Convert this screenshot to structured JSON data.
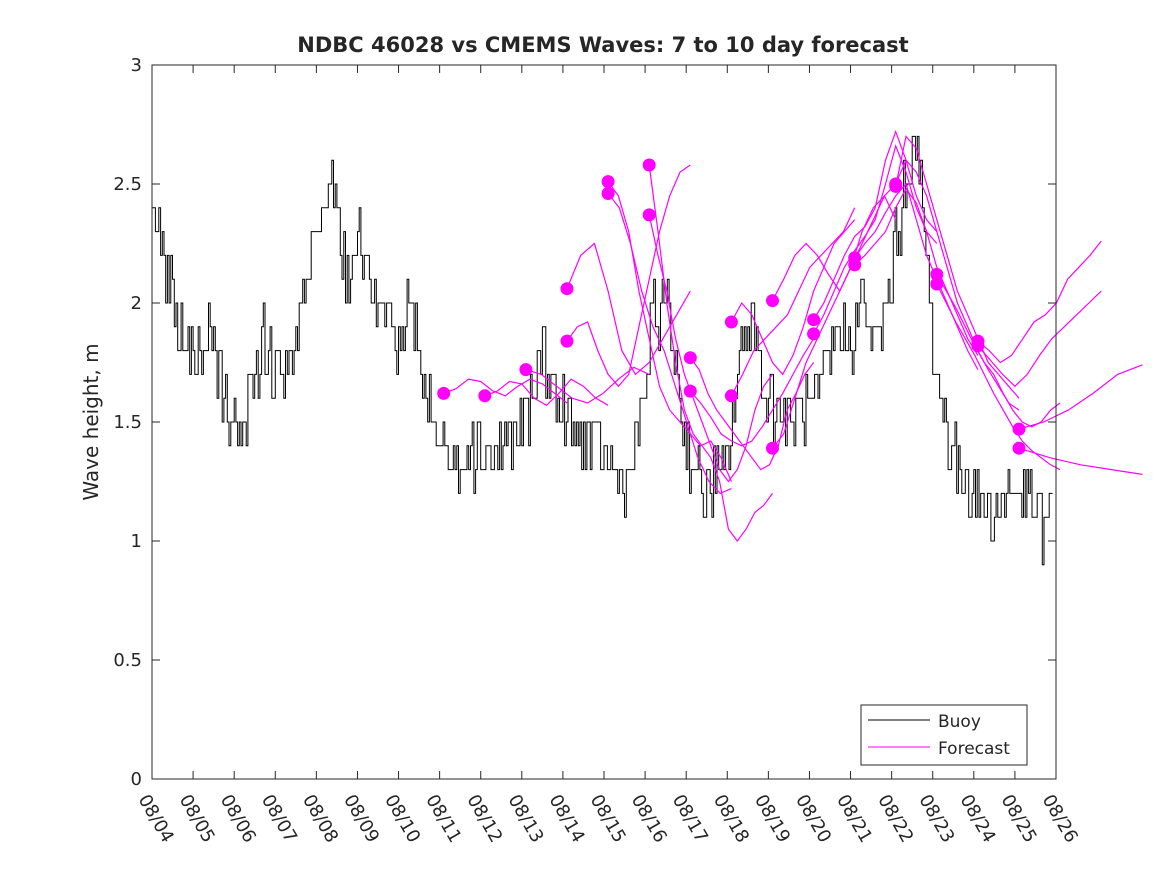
{
  "chart_data": {
    "type": "line",
    "title": "NDBC 46028 vs CMEMS Waves: 7 to 10 day forecast",
    "xlabel": "",
    "ylabel": "Wave height, m",
    "xlim": [
      0,
      22
    ],
    "ylim": [
      0,
      3
    ],
    "yticks": [
      0,
      0.5,
      1,
      1.5,
      2,
      2.5,
      3
    ],
    "ytick_labels": [
      "0",
      "0.5",
      "1",
      "1.5",
      "2",
      "2.5",
      "3"
    ],
    "xtick_labels": [
      "08/04",
      "08/05",
      "08/06",
      "08/07",
      "08/08",
      "08/09",
      "08/10",
      "08/11",
      "08/12",
      "08/13",
      "08/14",
      "08/15",
      "08/16",
      "08/17",
      "08/18",
      "08/19",
      "08/20",
      "08/21",
      "08/22",
      "08/23",
      "08/24",
      "08/25",
      "08/26"
    ],
    "legend": {
      "location": "bottom-right",
      "entries": [
        "Buoy",
        "Forecast"
      ]
    },
    "colors": {
      "buoy": "#000000",
      "forecast": "#ff00ff",
      "axes": "#262626"
    },
    "buoy_anchors": [
      [
        0,
        2.5
      ],
      [
        0.3,
        2.2
      ],
      [
        0.6,
        1.9
      ],
      [
        0.9,
        1.75
      ],
      [
        1.2,
        1.85
      ],
      [
        1.5,
        1.8
      ],
      [
        1.8,
        1.55
      ],
      [
        2.1,
        1.45
      ],
      [
        2.4,
        1.6
      ],
      [
        2.7,
        1.85
      ],
      [
        3.0,
        1.75
      ],
      [
        3.3,
        1.65
      ],
      [
        3.6,
        1.9
      ],
      [
        3.9,
        2.15
      ],
      [
        4.2,
        2.45
      ],
      [
        4.4,
        2.55
      ],
      [
        4.7,
        2.1
      ],
      [
        5.0,
        2.25
      ],
      [
        5.3,
        2.0
      ],
      [
        5.7,
        1.95
      ],
      [
        5.9,
        1.85
      ],
      [
        6.2,
        1.95
      ],
      [
        6.5,
        1.85
      ],
      [
        6.8,
        1.5
      ],
      [
        7.1,
        1.4
      ],
      [
        7.4,
        1.3
      ],
      [
        7.7,
        1.38
      ],
      [
        8.0,
        1.4
      ],
      [
        8.3,
        1.35
      ],
      [
        8.6,
        1.4
      ],
      [
        8.9,
        1.45
      ],
      [
        9.2,
        1.55
      ],
      [
        9.5,
        1.8
      ],
      [
        9.8,
        1.6
      ],
      [
        10.1,
        1.5
      ],
      [
        10.4,
        1.45
      ],
      [
        10.7,
        1.4
      ],
      [
        11.0,
        1.35
      ],
      [
        11.3,
        1.3
      ],
      [
        11.6,
        1.25
      ],
      [
        11.9,
        1.5
      ],
      [
        12.2,
        1.95
      ],
      [
        12.5,
        2.0
      ],
      [
        12.7,
        1.8
      ],
      [
        12.9,
        1.5
      ],
      [
        13.2,
        1.3
      ],
      [
        13.4,
        1.2
      ],
      [
        13.7,
        1.25
      ],
      [
        14.0,
        1.3
      ],
      [
        14.3,
        1.8
      ],
      [
        14.6,
        1.95
      ],
      [
        14.9,
        1.65
      ],
      [
        15.2,
        1.55
      ],
      [
        15.5,
        1.5
      ],
      [
        15.8,
        1.55
      ],
      [
        16.1,
        1.55
      ],
      [
        16.4,
        1.7
      ],
      [
        16.7,
        1.9
      ],
      [
        17.0,
        1.85
      ],
      [
        17.3,
        2.0
      ],
      [
        17.6,
        1.8
      ],
      [
        17.9,
        2.0
      ],
      [
        18.2,
        2.35
      ],
      [
        18.4,
        2.6
      ],
      [
        18.6,
        2.65
      ],
      [
        18.8,
        2.3
      ],
      [
        19.0,
        1.8
      ],
      [
        19.3,
        1.5
      ],
      [
        19.6,
        1.3
      ],
      [
        19.9,
        1.25
      ],
      [
        20.2,
        1.15
      ],
      [
        20.5,
        1.1
      ],
      [
        20.8,
        1.2
      ],
      [
        21.1,
        1.25
      ],
      [
        21.4,
        1.15
      ],
      [
        21.7,
        1.05
      ],
      [
        22.0,
        1.15
      ]
    ],
    "forecast_series": [
      {
        "start": 7.1,
        "values": [
          1.62,
          1.64,
          1.68,
          1.67,
          1.63,
          1.61,
          1.65,
          1.68,
          1.66,
          1.62,
          1.58
        ]
      },
      {
        "start": 8.1,
        "values": [
          1.61,
          1.63,
          1.67,
          1.66,
          1.6,
          1.57,
          1.62,
          1.68,
          1.65,
          1.6,
          1.57
        ]
      },
      {
        "start": 9.1,
        "values": [
          1.72,
          1.7,
          1.65,
          1.6,
          1.58,
          1.62,
          1.68,
          1.73,
          1.7
        ]
      },
      {
        "start": 10.1,
        "values": [
          2.06,
          2.2,
          2.25,
          2.05,
          1.8,
          1.7,
          1.75,
          1.85,
          1.95,
          2.05
        ]
      },
      {
        "start": 10.1,
        "values": [
          1.84,
          1.9,
          1.92,
          1.8,
          1.7,
          1.65,
          1.7,
          1.9,
          2.1,
          2.3,
          2.45,
          2.55,
          2.58
        ]
      },
      {
        "start": 11.1,
        "values": [
          2.51,
          2.45,
          2.3,
          2.05,
          1.85,
          1.65,
          1.55,
          1.5,
          1.45,
          1.4,
          1.42,
          1.35,
          1.25
        ]
      },
      {
        "start": 11.1,
        "values": [
          2.46,
          2.4,
          2.25,
          2.05,
          1.9,
          1.8,
          1.65,
          1.5,
          1.35,
          1.25,
          1.2,
          1.22
        ]
      },
      {
        "start": 12.1,
        "values": [
          2.58,
          2.3,
          2.0,
          1.75,
          1.55,
          1.45,
          1.4,
          1.35,
          1.25,
          1.05,
          1.0,
          1.05,
          1.12,
          1.15,
          1.2
        ]
      },
      {
        "start": 12.1,
        "values": [
          2.37,
          2.2,
          2.05,
          1.85,
          1.7,
          1.6,
          1.5,
          1.4,
          1.3,
          1.25,
          1.3,
          1.4,
          1.55,
          1.65,
          1.7
        ]
      },
      {
        "start": 13.1,
        "values": [
          1.77,
          1.72,
          1.62,
          1.55,
          1.5,
          1.45,
          1.4,
          1.35,
          1.3,
          1.32,
          1.4,
          1.55,
          1.62,
          1.7,
          1.75
        ]
      },
      {
        "start": 13.1,
        "values": [
          1.63,
          1.58,
          1.52,
          1.45,
          1.42,
          1.4,
          1.42,
          1.48,
          1.55,
          1.62,
          1.7,
          1.78,
          1.85
        ]
      },
      {
        "start": 14.1,
        "values": [
          1.92,
          2.0,
          1.95,
          1.85,
          1.75,
          1.7,
          1.78,
          1.9,
          2.05,
          2.15,
          2.25,
          2.3,
          2.35
        ]
      },
      {
        "start": 14.1,
        "values": [
          1.61,
          1.7,
          1.8,
          1.85,
          1.9,
          1.95,
          2.05,
          2.15,
          2.2,
          2.25,
          2.3,
          2.4
        ]
      },
      {
        "start": 15.1,
        "values": [
          2.01,
          2.1,
          2.2,
          2.25,
          2.2,
          2.12,
          2.05,
          2.15,
          2.3,
          2.4,
          2.45,
          2.5
        ]
      },
      {
        "start": 15.1,
        "values": [
          1.39,
          1.45,
          1.6,
          1.75,
          1.85,
          1.95,
          2.05,
          2.15,
          2.25,
          2.35,
          2.45,
          2.35
        ]
      },
      {
        "start": 16.1,
        "values": [
          1.93,
          2.0,
          2.1,
          2.2,
          2.28,
          2.32,
          2.4,
          2.6,
          2.72,
          2.6,
          2.45,
          2.35,
          2.3
        ]
      },
      {
        "start": 16.1,
        "values": [
          1.87,
          1.95,
          2.05,
          2.15,
          2.22,
          2.28,
          2.35,
          2.5,
          2.66,
          2.55,
          2.4,
          2.3,
          2.25
        ]
      },
      {
        "start": 17.1,
        "values": [
          2.19,
          2.25,
          2.3,
          2.38,
          2.45,
          2.5,
          2.35,
          2.2,
          2.1,
          2.0,
          1.9,
          1.8,
          1.72
        ]
      },
      {
        "start": 17.1,
        "values": [
          2.16,
          2.2,
          2.25,
          2.3,
          2.4,
          2.48,
          2.42,
          2.3,
          2.15,
          2.05,
          1.95,
          1.85,
          1.78
        ]
      },
      {
        "start": 18.1,
        "values": [
          2.49,
          2.7,
          2.65,
          2.5,
          2.35,
          2.2,
          2.05,
          1.95,
          1.85,
          1.75,
          1.7,
          1.65,
          1.6
        ]
      },
      {
        "start": 18.1,
        "values": [
          2.5,
          2.6,
          2.55,
          2.45,
          2.3,
          2.15,
          2.0,
          1.9,
          1.8,
          1.72,
          1.65,
          1.58,
          1.55
        ]
      },
      {
        "start": 19.1,
        "values": [
          2.12,
          2.05,
          1.98,
          1.9,
          1.82,
          1.75,
          1.7,
          1.62,
          1.55,
          1.5,
          1.48,
          1.5,
          1.55,
          1.58
        ]
      },
      {
        "start": 19.1,
        "values": [
          2.08,
          2.0,
          1.92,
          1.85,
          1.78,
          1.7,
          1.62,
          1.55,
          1.48,
          1.42,
          1.38,
          1.35,
          1.32,
          1.3
        ]
      },
      {
        "start": 20.1,
        "values": [
          1.84,
          1.8,
          1.75,
          1.78,
          1.85,
          1.92,
          1.95,
          2.0,
          2.1,
          2.15,
          2.2,
          2.26
        ]
      },
      {
        "start": 20.1,
        "values": [
          1.82,
          1.76,
          1.7,
          1.65,
          1.7,
          1.78,
          1.85,
          1.9,
          1.95,
          2.0,
          2.05
        ]
      },
      {
        "start": 21.1,
        "values": [
          1.47,
          1.5,
          1.55,
          1.62,
          1.7,
          1.74
        ]
      },
      {
        "start": 21.1,
        "values": [
          1.39,
          1.35,
          1.32,
          1.3,
          1.28
        ]
      }
    ],
    "forecast_markers": [
      [
        7.1,
        1.62
      ],
      [
        8.1,
        1.61
      ],
      [
        9.1,
        1.72
      ],
      [
        10.1,
        2.06
      ],
      [
        10.1,
        1.84
      ],
      [
        11.1,
        2.51
      ],
      [
        11.1,
        2.46
      ],
      [
        12.1,
        2.58
      ],
      [
        12.1,
        2.37
      ],
      [
        13.1,
        1.77
      ],
      [
        13.1,
        1.63
      ],
      [
        14.1,
        1.92
      ],
      [
        14.1,
        1.61
      ],
      [
        15.1,
        2.01
      ],
      [
        15.1,
        1.39
      ],
      [
        16.1,
        1.93
      ],
      [
        16.1,
        1.87
      ],
      [
        17.1,
        2.19
      ],
      [
        17.1,
        2.16
      ],
      [
        18.1,
        2.49
      ],
      [
        18.1,
        2.5
      ],
      [
        19.1,
        2.12
      ],
      [
        19.1,
        2.08
      ],
      [
        20.1,
        1.84
      ],
      [
        20.1,
        1.82
      ],
      [
        21.1,
        1.47
      ],
      [
        21.1,
        1.39
      ]
    ]
  }
}
